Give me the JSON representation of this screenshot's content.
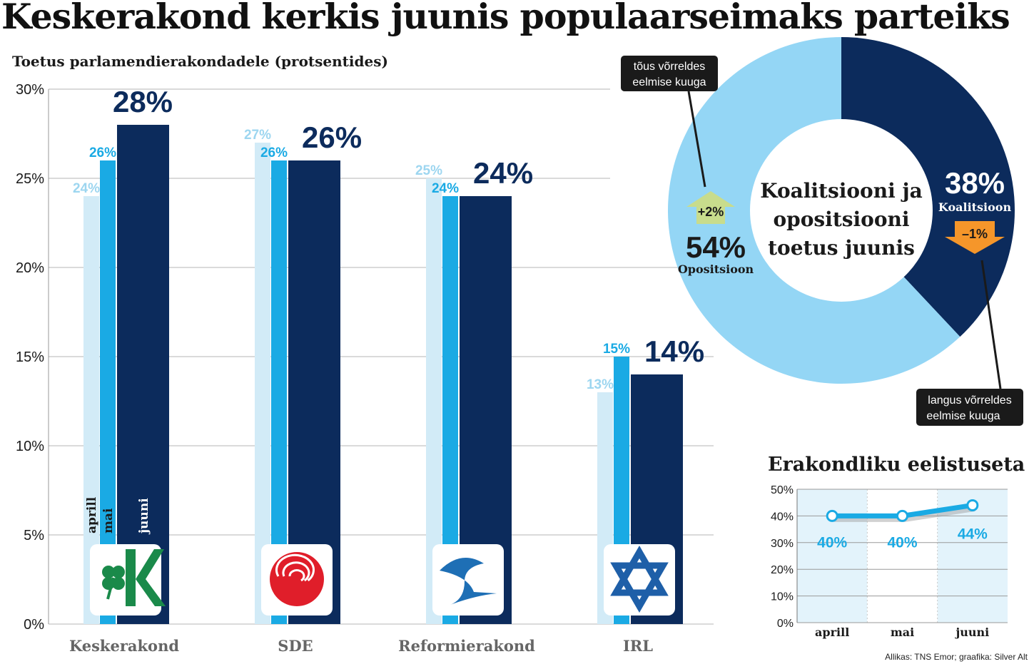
{
  "title": "Keskerakond kerkis juunis populaarseimaks parteiks",
  "source": "Allikas: TNS Emor; graafika: Silver Alt",
  "colors": {
    "april": "#d2ebf7",
    "may": "#1aaae4",
    "june": "#0c2b5c",
    "opposition": "#94d6f5",
    "coalition": "#0c2b5c",
    "up_arrow": "#c8dc8c",
    "down_arrow": "#f5962a"
  },
  "chart_data": [
    {
      "type": "bar",
      "title": "Toetus parlamendierakondadele (protsentides)",
      "categories": [
        "Keskerakond",
        "SDE",
        "Reformierakond",
        "IRL"
      ],
      "series": [
        {
          "name": "aprill",
          "values": [
            24,
            27,
            25,
            13
          ],
          "labels": [
            "24%",
            "27%",
            "25%",
            "13%"
          ]
        },
        {
          "name": "mai",
          "values": [
            26,
            26,
            24,
            15
          ],
          "labels": [
            "26%",
            "26%",
            "24%",
            "15%"
          ]
        },
        {
          "name": "juuni",
          "values": [
            28,
            26,
            24,
            14
          ],
          "labels": [
            "28%",
            "26%",
            "24%",
            "14%"
          ]
        }
      ],
      "ylim": [
        0,
        30
      ],
      "yticks": [
        "0%",
        "5%",
        "10%",
        "15%",
        "20%",
        "25%",
        "30%"
      ],
      "grid": true,
      "logos": [
        "keskerakond-logo",
        "sde-rose-logo",
        "reformierakond-squirrel-logo",
        "irl-star-logo"
      ]
    },
    {
      "type": "pie",
      "title": "Koalitsiooni ja opositsiooni toetus juunis",
      "slices": [
        {
          "name": "Opositsioon",
          "value": 54,
          "label": "54%",
          "change": "+2%"
        },
        {
          "name": "Koalitsioon",
          "value": 38,
          "label": "38%",
          "change": "–1%"
        }
      ],
      "callouts": {
        "up": "tõus võrreldes eelmise kuuga",
        "down": "langus võrreldes eelmise kuuga"
      }
    },
    {
      "type": "line",
      "title": "Erakondliku eelistuseta",
      "categories": [
        "aprill",
        "mai",
        "juuni"
      ],
      "values": [
        40,
        40,
        44
      ],
      "labels": [
        "40%",
        "40%",
        "44%"
      ],
      "ylim": [
        0,
        50
      ],
      "yticks": [
        "0%",
        "10%",
        "20%",
        "30%",
        "40%",
        "50%"
      ],
      "grid": true
    }
  ]
}
